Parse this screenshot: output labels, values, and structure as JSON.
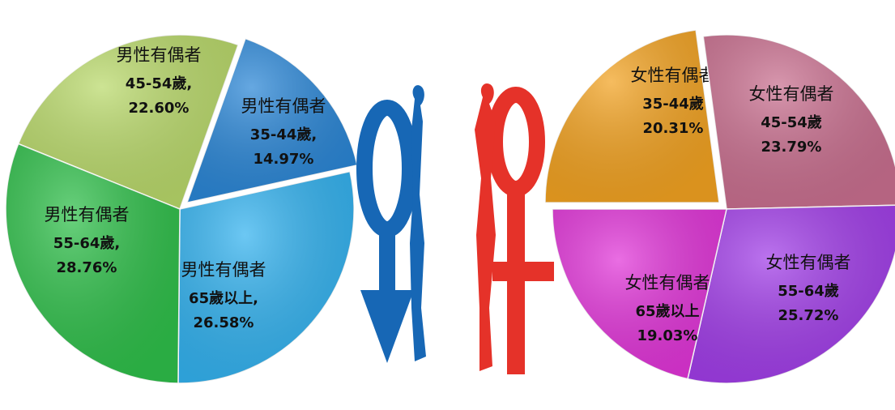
{
  "chart_data": [
    {
      "type": "pie",
      "categories": [
        "45-54歲",
        "35-44歲",
        "65歲以上",
        "55-64歲"
      ],
      "values": [
        22.6,
        14.97,
        26.58,
        28.76
      ],
      "labels": [
        {
          "name": "男性有偶者",
          "group": "45-54歲",
          "value": "22.60%"
        },
        {
          "name": "男性有偶者",
          "group": "35-44歲",
          "value": "14.97%"
        },
        {
          "name": "男性有偶者",
          "group": "65歲以上",
          "value": "26.58%"
        },
        {
          "name": "男性有偶者",
          "group": "55-64歲",
          "value": "28.76%"
        }
      ],
      "colors": [
        "#b9d96a",
        "#2a86d6",
        "#33b2ef",
        "#2fbf4a"
      ],
      "exploded": "35-44歲",
      "legend": "none"
    },
    {
      "type": "pie",
      "categories": [
        "35-44歲",
        "45-54歲",
        "55-64歲",
        "65歲以上"
      ],
      "values": [
        20.31,
        23.79,
        25.72,
        19.03
      ],
      "labels": [
        {
          "name": "女性有偶者",
          "group": "35-44歲",
          "value": "20.31%"
        },
        {
          "name": "女性有偶者",
          "group": "45-54歲",
          "value": "23.79%"
        },
        {
          "name": "女性有偶者",
          "group": "55-64歲",
          "value": "25.72%"
        },
        {
          "name": "女性有偶者",
          "group": "65歲以上",
          "value": "19.03%"
        }
      ],
      "colors": [
        "#f2a221",
        "#c96f8f",
        "#a13de8",
        "#e135d8"
      ],
      "exploded": "35-44歲",
      "legend": "none"
    }
  ],
  "icons": {
    "male": "male-silhouette-symbol-icon",
    "female": "female-silhouette-symbol-icon",
    "male_color": "#1767b5",
    "female_color": "#e53229"
  }
}
